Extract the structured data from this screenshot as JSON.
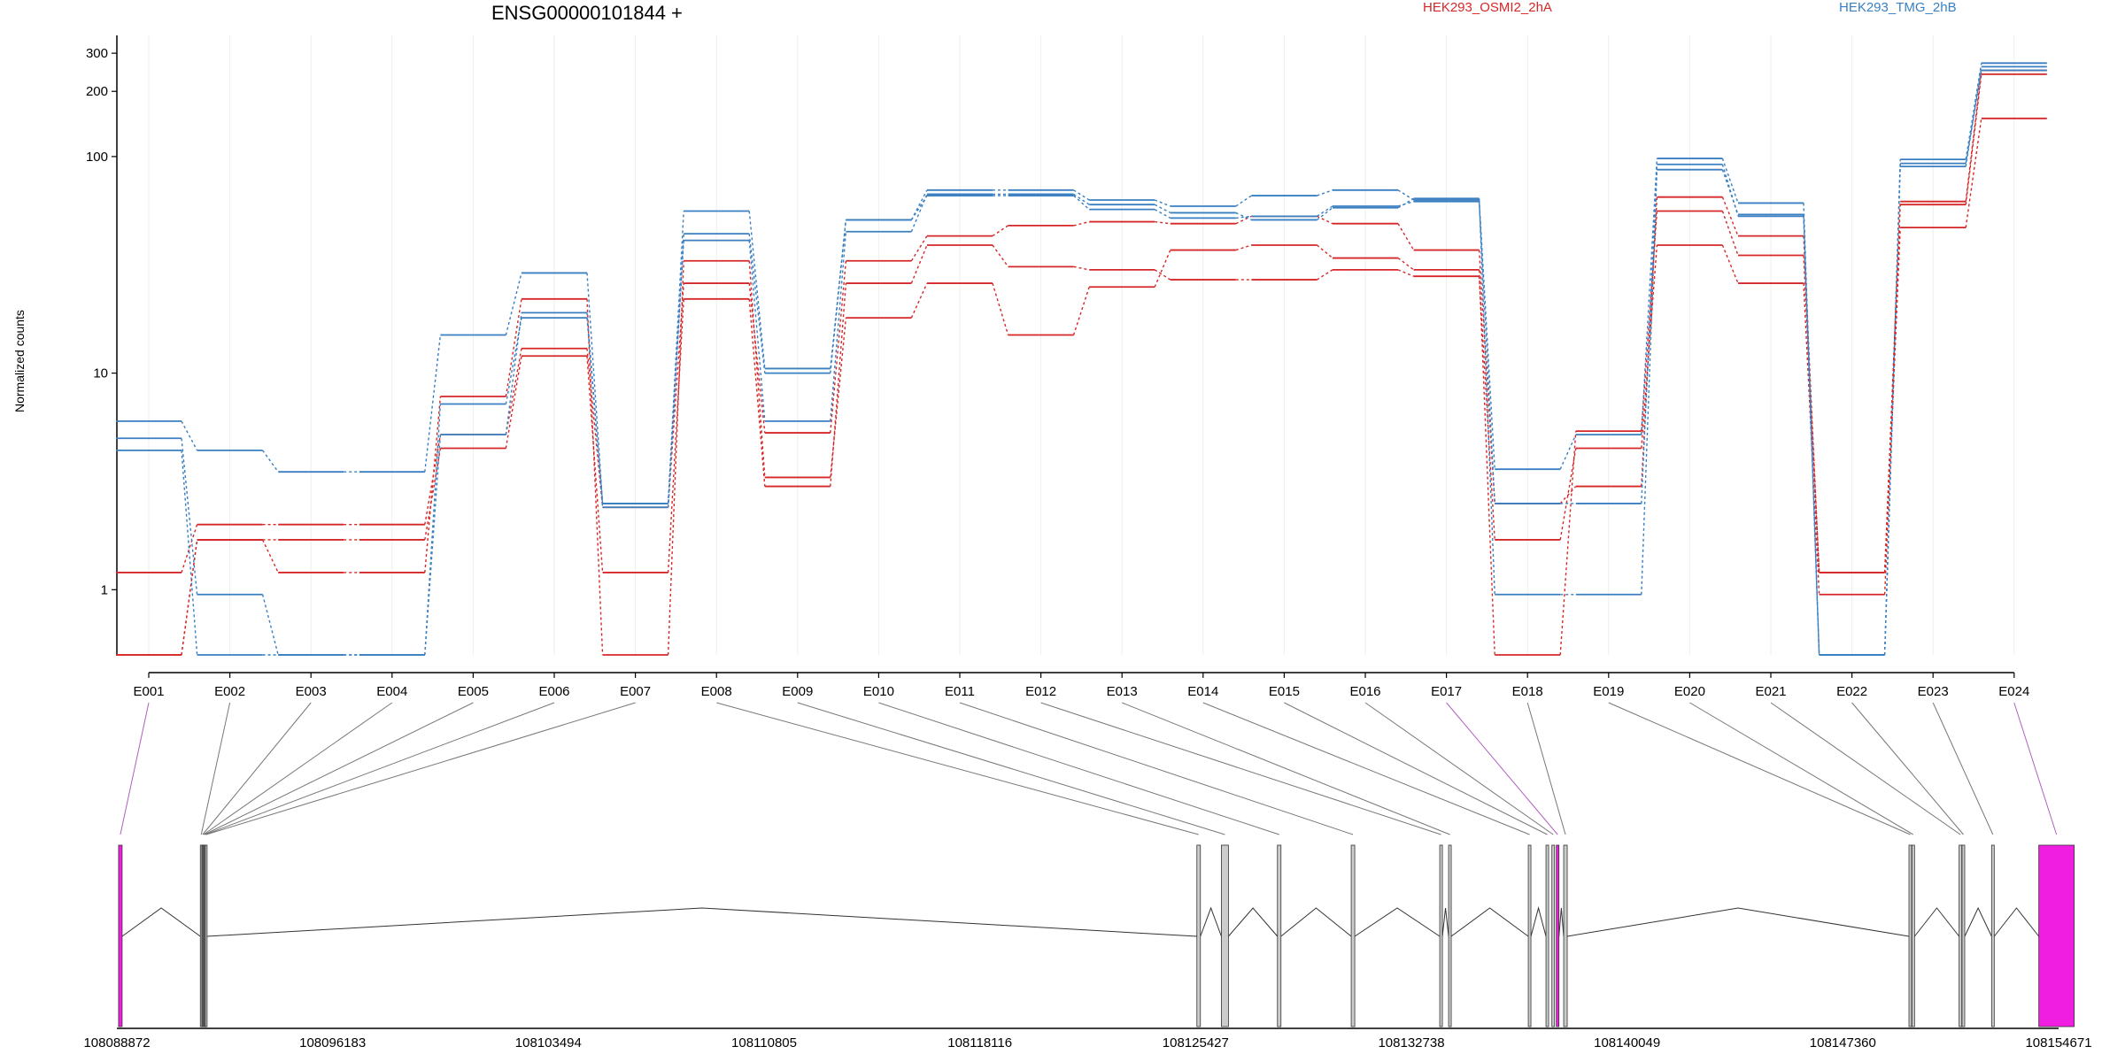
{
  "chart_data": {
    "type": "line",
    "title": "ENSG00000101844 +",
    "ylabel": "Normalized counts",
    "yscale": "log",
    "ylim": [
      0.5,
      330
    ],
    "yticks": [
      1,
      10,
      100,
      200,
      300
    ],
    "categories": [
      "E001",
      "E002",
      "E003",
      "E004",
      "E005",
      "E006",
      "E007",
      "E008",
      "E009",
      "E010",
      "E011",
      "E012",
      "E013",
      "E014",
      "E015",
      "E016",
      "E017",
      "E018",
      "E019",
      "E020",
      "E021",
      "E022",
      "E023",
      "E024"
    ],
    "legend": [
      {
        "name": "HEK293_OSMI2_2hA",
        "color": "#d62728"
      },
      {
        "name": "HEK293_TMG_2hB",
        "color": "#3a7fc1"
      }
    ],
    "series": [
      {
        "group": "HEK293_OSMI2_2hA",
        "color": "#d62728",
        "values": [
          1.2,
          2.0,
          2.0,
          2.0,
          5.2,
          13.0,
          2.4,
          26,
          5.3,
          33,
          43,
          48,
          50,
          49,
          53,
          49,
          37,
          2.5,
          3.0,
          65,
          43,
          1.2,
          60,
          240
        ]
      },
      {
        "group": "HEK293_OSMI2_2hA",
        "color": "#d62728",
        "values": [
          0.5,
          1.7,
          1.7,
          1.7,
          4.5,
          12.0,
          1.2,
          22,
          3.0,
          26,
          39,
          31,
          30,
          27,
          27,
          30,
          28,
          1.7,
          4.5,
          39,
          26,
          0.95,
          47,
          150
        ]
      },
      {
        "group": "HEK293_OSMI2_2hA",
        "color": "#d62728",
        "values": [
          0.5,
          1.7,
          1.2,
          1.2,
          7.8,
          22.0,
          0.5,
          33,
          3.3,
          18,
          26,
          15,
          25,
          37,
          39,
          34,
          30,
          0.5,
          5.4,
          56,
          35,
          1.2,
          62,
          250
        ]
      },
      {
        "group": "HEK293_TMG_2hB",
        "color": "#3a7fc1",
        "values": [
          6.0,
          4.4,
          3.5,
          3.5,
          15.0,
          29.0,
          2.5,
          56,
          10.5,
          51,
          70,
          70,
          63,
          59,
          66,
          70,
          63,
          3.6,
          5.2,
          98,
          61,
          0.5,
          97,
          270
        ]
      },
      {
        "group": "HEK293_TMG_2hB",
        "color": "#3a7fc1",
        "values": [
          5.0,
          0.95,
          0.5,
          0.5,
          7.2,
          18.0,
          2.4,
          44,
          10.0,
          51,
          66,
          66,
          57,
          52,
          53,
          59,
          62,
          2.5,
          2.5,
          92,
          53,
          0.5,
          93,
          250
        ]
      },
      {
        "group": "HEK293_TMG_2hB",
        "color": "#3a7fc1",
        "values": [
          4.4,
          0.5,
          0.5,
          0.5,
          5.2,
          19.0,
          2.5,
          41,
          6.0,
          45,
          67,
          67,
          60,
          55,
          51,
          58,
          64,
          0.95,
          0.95,
          87,
          54,
          0.5,
          90,
          260
        ]
      }
    ],
    "gene_model": {
      "genomic_ticks": [
        "108088872",
        "108096183",
        "108103494",
        "108110805",
        "108118116",
        "108125427",
        "108132738",
        "108140049",
        "108147360",
        "108154671"
      ],
      "genomic_start": 108088872,
      "genomic_end": 108154671,
      "highlighted_exons": [
        "E001",
        "E017",
        "E024"
      ],
      "highlight_color": "#f01ee0",
      "exon_color": "#cccccc"
    }
  }
}
